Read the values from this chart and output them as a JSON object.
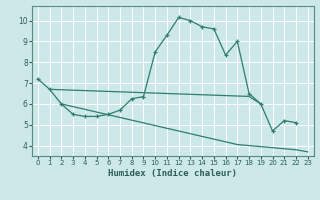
{
  "xlabel": "Humidex (Indice chaleur)",
  "background_color": "#cce8e8",
  "grid_color": "#ffffff",
  "line_color": "#2e7d6e",
  "xlim": [
    -0.5,
    23.5
  ],
  "ylim": [
    3.5,
    10.7
  ],
  "xticks": [
    0,
    1,
    2,
    3,
    4,
    5,
    6,
    7,
    8,
    9,
    10,
    11,
    12,
    13,
    14,
    15,
    16,
    17,
    18,
    19,
    20,
    21,
    22,
    23
  ],
  "yticks": [
    4,
    5,
    6,
    7,
    8,
    9,
    10
  ],
  "curve1_x": [
    0,
    1,
    2,
    3,
    4,
    5,
    6,
    7,
    8,
    9,
    10,
    11,
    12,
    13,
    14,
    15,
    16,
    17,
    18,
    19,
    20,
    21,
    22
  ],
  "curve1_y": [
    7.2,
    6.7,
    6.0,
    5.5,
    5.4,
    5.4,
    5.5,
    5.7,
    6.25,
    6.35,
    8.5,
    9.3,
    10.15,
    10.0,
    9.7,
    9.6,
    8.35,
    9.0,
    6.5,
    6.0,
    4.7,
    5.2,
    5.1
  ],
  "flat_x": [
    1,
    2,
    3,
    4,
    5,
    6,
    7,
    8,
    9,
    10,
    11,
    12,
    13,
    14,
    15,
    16,
    17,
    18,
    19
  ],
  "flat_y": [
    6.7,
    6.68,
    6.66,
    6.64,
    6.62,
    6.6,
    6.58,
    6.56,
    6.54,
    6.52,
    6.5,
    6.48,
    6.46,
    6.44,
    6.42,
    6.4,
    6.38,
    6.36,
    6.0
  ],
  "decline_x": [
    2,
    3,
    4,
    5,
    6,
    7,
    8,
    9,
    10,
    11,
    12,
    13,
    14,
    15,
    16,
    17,
    18,
    19,
    20,
    21,
    22,
    23
  ],
  "decline_y": [
    6.0,
    5.87,
    5.74,
    5.61,
    5.48,
    5.35,
    5.22,
    5.09,
    4.96,
    4.83,
    4.7,
    4.57,
    4.44,
    4.31,
    4.18,
    4.05,
    4.0,
    3.95,
    3.9,
    3.85,
    3.8,
    3.7
  ]
}
